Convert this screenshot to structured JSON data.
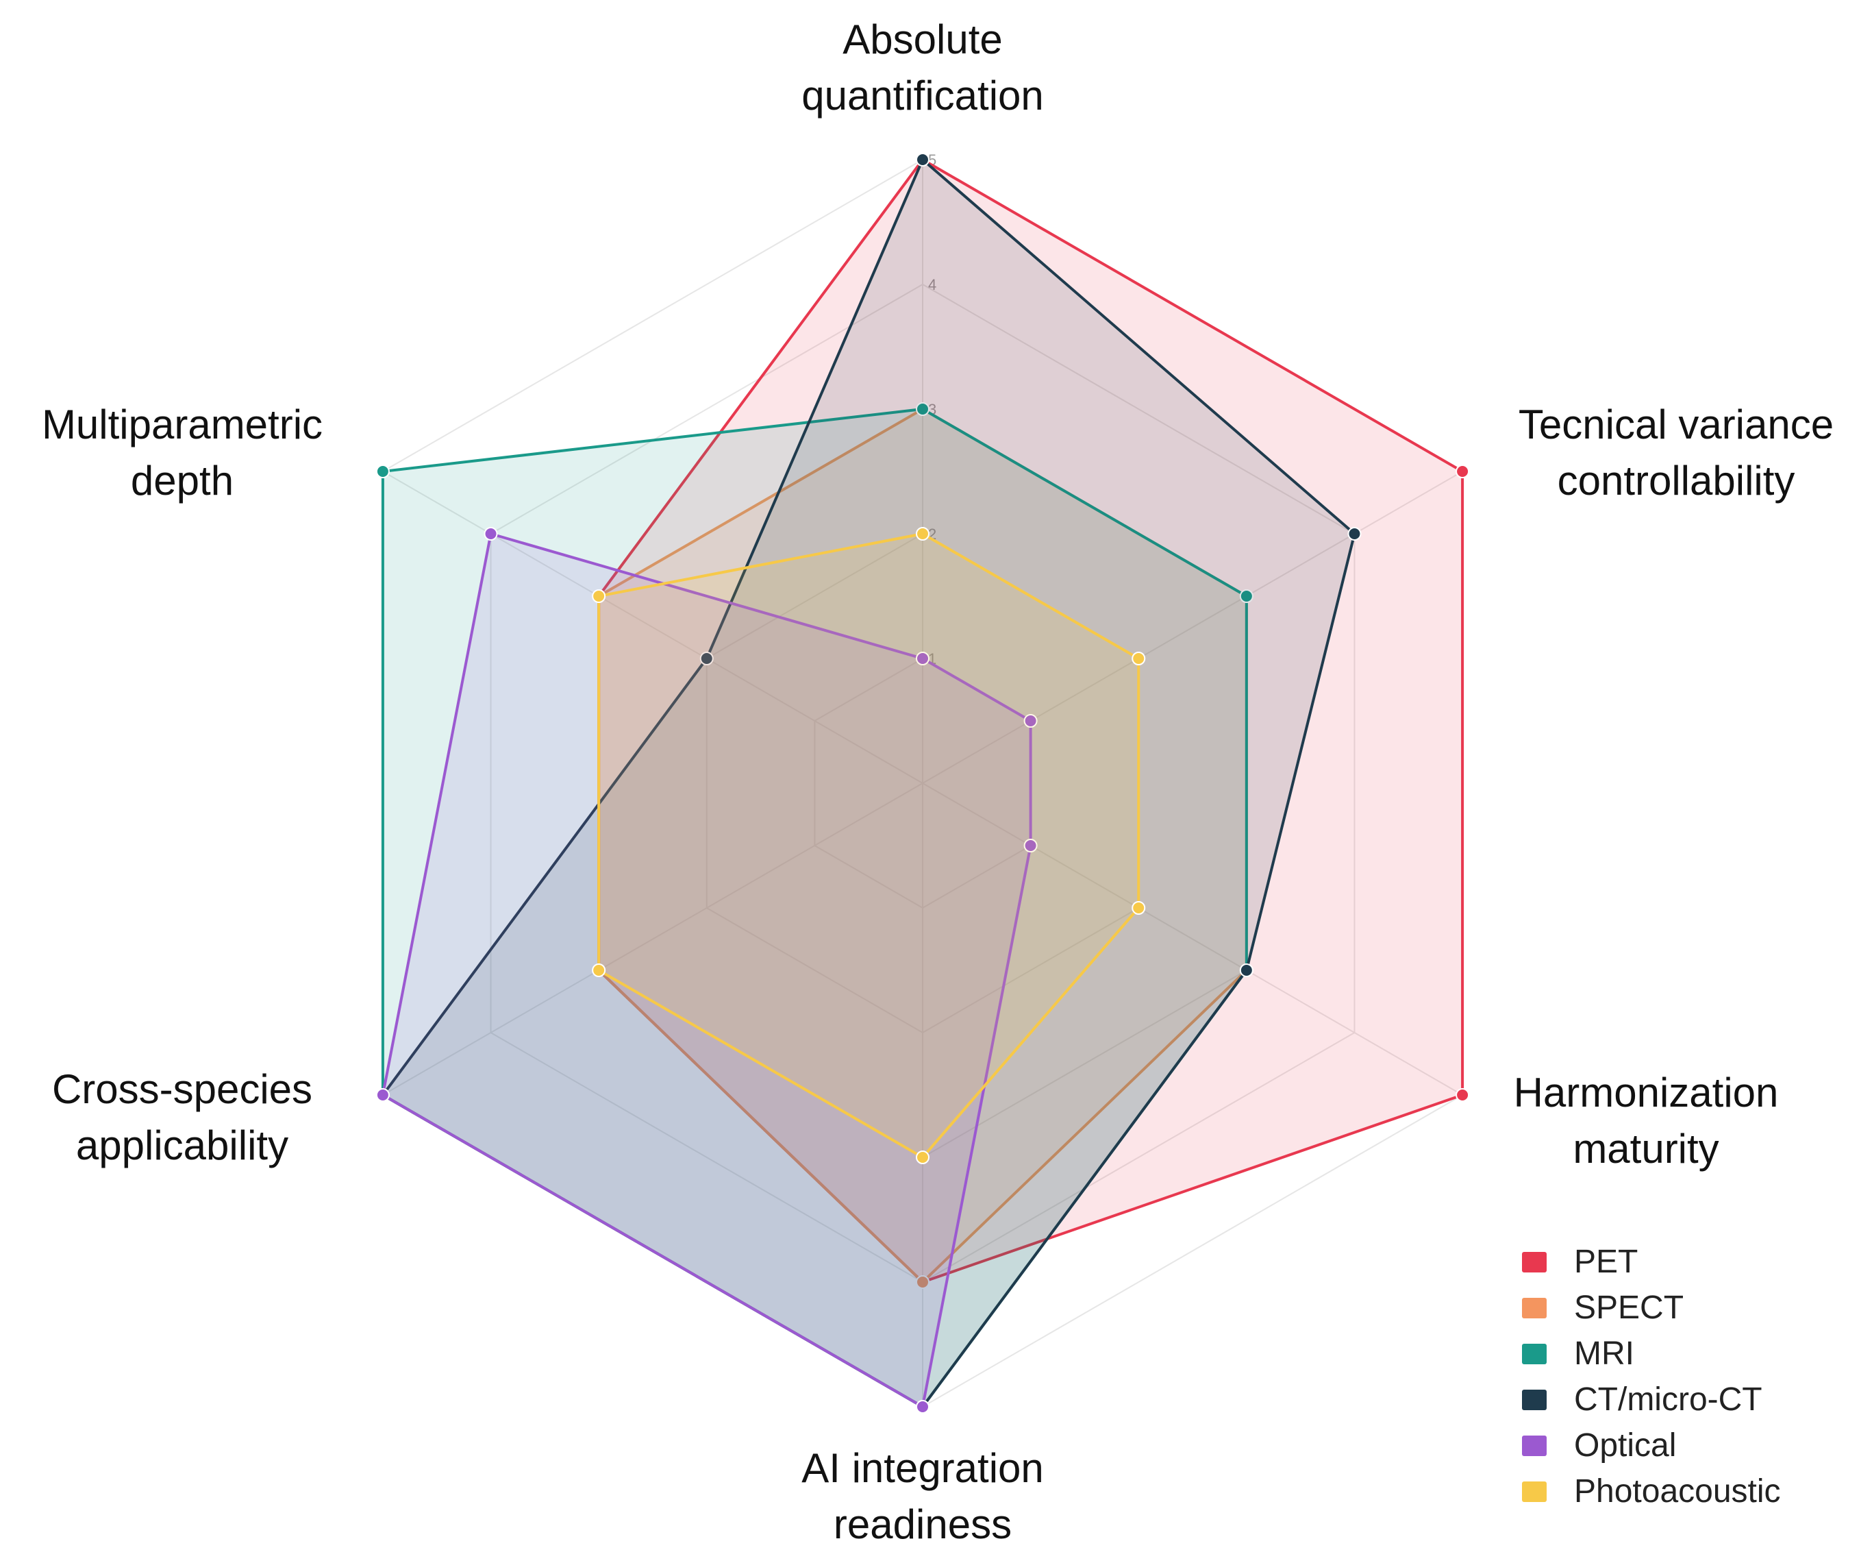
{
  "chart_data": {
    "type": "radar",
    "title": "",
    "axes": [
      "Absolute quantification",
      "Tecnical variance controllability",
      "Harmonization maturity",
      "AI integration readiness",
      "Cross-species applicability",
      "Multiparametric depth"
    ],
    "axis_label_lines": [
      [
        "Absolute",
        "quantification"
      ],
      [
        "Tecnical variance",
        "controllability"
      ],
      [
        "Harmonization",
        "maturity"
      ],
      [
        "AI integration",
        "readiness"
      ],
      [
        "Cross-species",
        "applicability"
      ],
      [
        "Multiparametric",
        "depth"
      ]
    ],
    "rlim": [
      0,
      5
    ],
    "ticks": [
      1,
      2,
      3,
      4,
      5
    ],
    "tick_labels": [
      "1",
      "2",
      "3",
      "4",
      "5"
    ],
    "series": [
      {
        "name": "PET",
        "color": "#E8384F",
        "values": [
          5,
          5,
          5,
          4,
          3,
          3
        ]
      },
      {
        "name": "SPECT",
        "color": "#F4955F",
        "values": [
          3,
          3,
          3,
          4,
          3,
          3
        ]
      },
      {
        "name": "MRI",
        "color": "#1A9A8A",
        "values": [
          3,
          3,
          3,
          5,
          5,
          5
        ]
      },
      {
        "name": "CT/micro-CT",
        "color": "#1F3B4D",
        "values": [
          5,
          4,
          3,
          5,
          5,
          2
        ]
      },
      {
        "name": "Optical",
        "color": "#9B59D0",
        "values": [
          1,
          1,
          1,
          5,
          5,
          4
        ]
      },
      {
        "name": "Photoacoustic",
        "color": "#F7C948",
        "values": [
          2,
          2,
          2,
          3,
          3,
          3
        ]
      }
    ],
    "legend_position": "bottom-right",
    "grid": true
  }
}
